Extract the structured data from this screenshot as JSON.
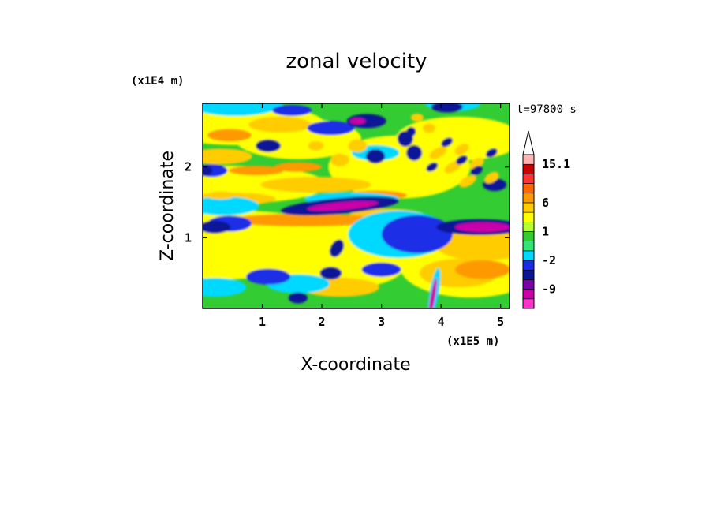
{
  "chart_data": {
    "type": "heatmap",
    "title": "zonal velocity",
    "xlabel": "X-coordinate",
    "ylabel": "Z-coordinate",
    "x_unit": "(x1E5 m)",
    "y_unit": "(x1E4 m)",
    "time_label": "t=97800 s",
    "xlim": [
      0,
      5.15
    ],
    "ylim": [
      0,
      2.9
    ],
    "x_ticks": [
      1,
      2,
      3,
      4,
      5
    ],
    "y_ticks": [
      1,
      2
    ],
    "colorbar": {
      "levels": [
        -15,
        -12,
        -9,
        -6,
        -4,
        -2,
        -1,
        0,
        1,
        2,
        4,
        6,
        8,
        10,
        12,
        15.1
      ],
      "labels": [
        "15.1",
        "6",
        "1",
        "-2",
        "-9"
      ],
      "label_values": [
        15.1,
        6,
        1,
        -2,
        -9
      ],
      "colors": [
        "#ff33cc",
        "#cc00aa",
        "#7a00a8",
        "#0a1496",
        "#1a2de6",
        "#00d9ff",
        "#33e673",
        "#33cc33",
        "#b3ff33",
        "#ffff00",
        "#ffcc00",
        "#ff9900",
        "#ff6600",
        "#ff3333",
        "#cc0000",
        "#ffb3b3"
      ],
      "extend": "max"
    },
    "features": [
      {
        "name": "blue band",
        "x": [
          1.0,
          3.0
        ],
        "z": 1.45,
        "value": -9
      },
      {
        "name": "blue band",
        "x": [
          4.3,
          5.1
        ],
        "z": 1.15,
        "value": -9
      },
      {
        "name": "orange band",
        "x": [
          1.0,
          3.2
        ],
        "z": 1.2,
        "value": 6
      },
      {
        "name": "wave train",
        "x": [
          3.4,
          5.0
        ],
        "z": [
          1.5,
          2.8
        ],
        "value": 6
      },
      {
        "name": "dark core",
        "x": 3.88,
        "z": 0.1,
        "value": -9
      }
    ]
  }
}
